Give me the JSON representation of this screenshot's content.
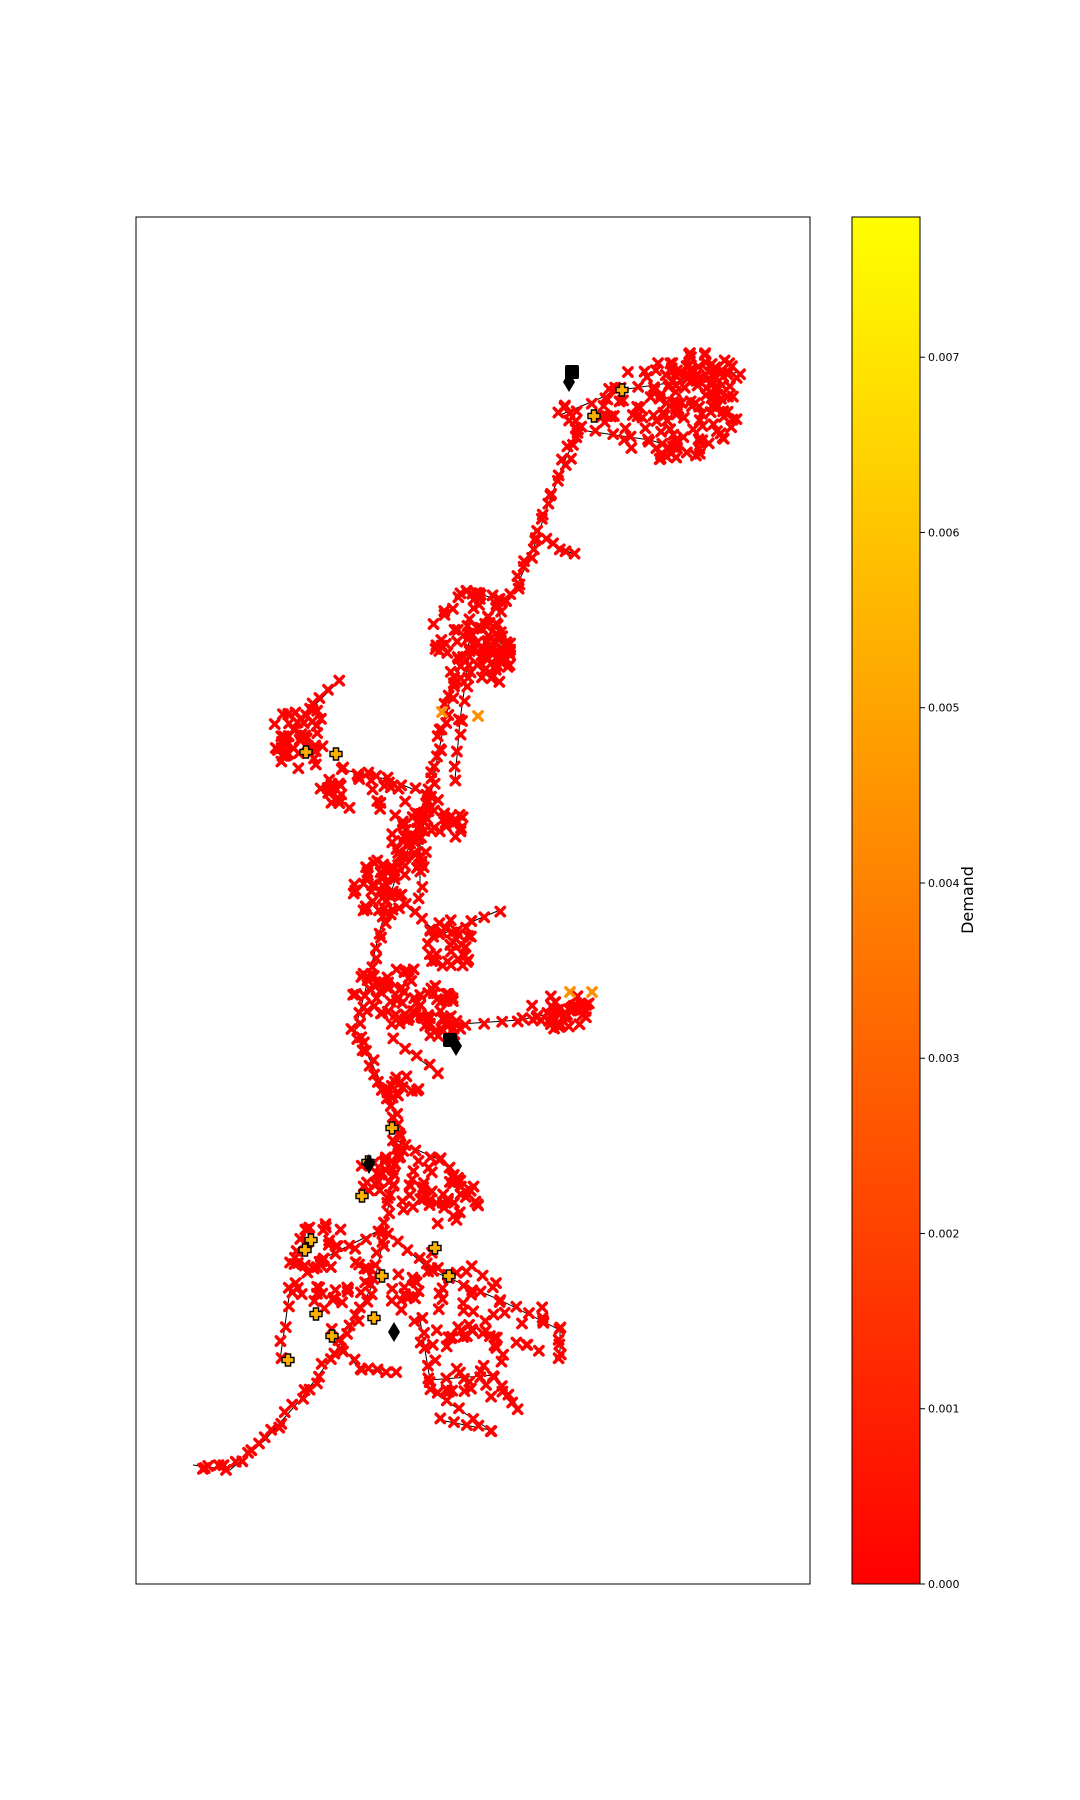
{
  "chart_data": {
    "type": "scatter",
    "subtype": "network-graph",
    "title": "",
    "xlabel": "",
    "ylabel": "",
    "axes_ticks_visible": false,
    "grid": false,
    "colormap": {
      "name": "autumn",
      "colors": [
        "#ff0000",
        "#ffff00"
      ],
      "range": [
        0,
        0.0078
      ],
      "label": "Demand",
      "ticks": [
        0.0,
        0.001,
        0.002,
        0.003,
        0.004,
        0.005,
        0.006,
        0.007
      ],
      "tick_labels": [
        "0.000",
        "0.001",
        "0.002",
        "0.003",
        "0.004",
        "0.005",
        "0.006",
        "0.007"
      ],
      "position": "right"
    },
    "edge_color": "#000000",
    "node_marker": "x",
    "special_markers": [
      {
        "marker": "plus",
        "color": "#ffb000",
        "role": "node-group"
      },
      {
        "marker": "square",
        "color": "#000000",
        "role": "node-group"
      },
      {
        "marker": "diamond",
        "color": "#000000",
        "role": "node-group"
      }
    ]
  }
}
